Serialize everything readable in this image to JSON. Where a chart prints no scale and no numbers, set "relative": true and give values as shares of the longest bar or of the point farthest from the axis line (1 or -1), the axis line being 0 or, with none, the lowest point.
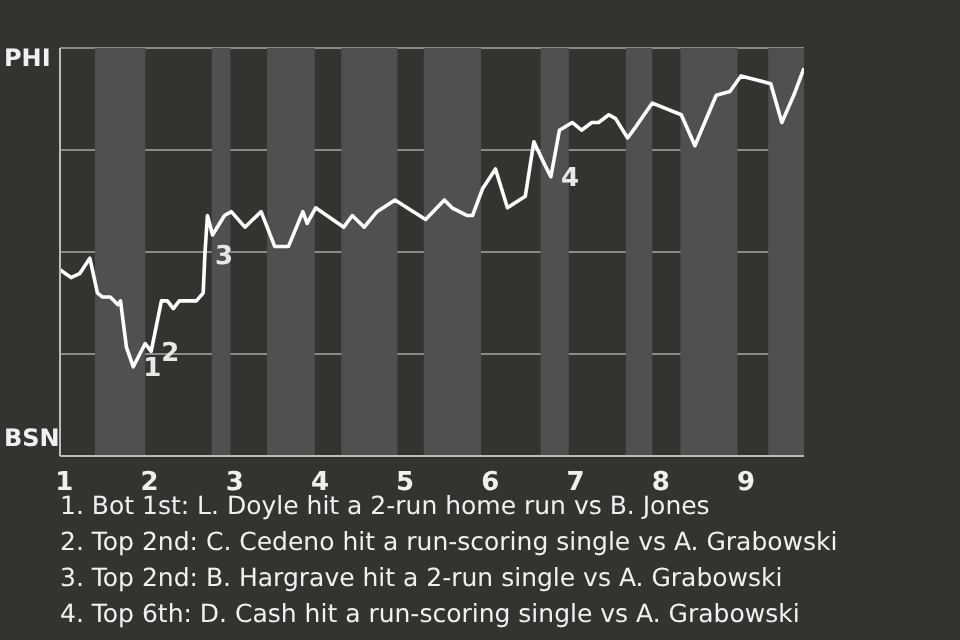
{
  "chart_data": {
    "type": "line",
    "relative": true,
    "x": [
      0.95,
      1.08,
      1.18,
      1.3,
      1.39,
      1.45,
      1.54,
      1.63,
      1.66,
      1.73,
      1.81,
      1.95,
      2.02,
      2.14,
      2.21,
      2.28,
      2.35,
      2.55,
      2.63,
      2.65,
      2.68,
      2.74,
      2.88,
      2.96,
      3.12,
      3.31,
      3.47,
      3.63,
      3.8,
      3.85,
      3.95,
      4.28,
      4.38,
      4.52,
      4.67,
      4.88,
      5.24,
      5.46,
      5.55,
      5.73,
      5.79,
      5.91,
      6.06,
      6.2,
      6.41,
      6.51,
      6.64,
      6.71,
      6.81,
      6.96,
      7.07,
      7.19,
      7.27,
      7.39,
      7.47,
      7.61,
      7.71,
      7.9,
      8.24,
      8.4,
      8.65,
      8.81,
      8.94,
      9.29,
      9.42,
      9.56,
      9.68
    ],
    "series": [
      {
        "color": "#ffffff",
        "values": [
          0.48,
          0.46,
          0.47,
          0.51,
          0.42,
          0.41,
          0.41,
          0.39,
          0.4,
          0.28,
          0.23,
          0.29,
          0.27,
          0.4,
          0.4,
          0.38,
          0.4,
          0.4,
          0.42,
          0.52,
          0.62,
          0.57,
          0.62,
          0.63,
          0.59,
          0.63,
          0.54,
          0.54,
          0.63,
          0.6,
          0.64,
          0.59,
          0.62,
          0.59,
          0.63,
          0.66,
          0.61,
          0.66,
          0.64,
          0.62,
          0.62,
          0.69,
          0.74,
          0.64,
          0.67,
          0.81,
          0.75,
          0.72,
          0.84,
          0.86,
          0.84,
          0.86,
          0.86,
          0.88,
          0.87,
          0.82,
          0.85,
          0.91,
          0.88,
          0.8,
          0.93,
          0.94,
          0.98,
          0.96,
          0.86,
          0.93,
          1
        ]
      }
    ],
    "xlim": [
      0.95,
      9.68
    ],
    "xticks": [
      1,
      2,
      3,
      4,
      5,
      6,
      7,
      8,
      9
    ],
    "grid": "y",
    "bands": [
      {
        "axis": "x",
        "from": 1.36,
        "to": 1.95,
        "color": "#505050"
      },
      {
        "axis": "x",
        "from": 2.73,
        "to": 2.95,
        "color": "#505050"
      },
      {
        "axis": "x",
        "from": 3.38,
        "to": 3.94,
        "color": "#505050"
      },
      {
        "axis": "x",
        "from": 4.25,
        "to": 4.91,
        "color": "#505050"
      },
      {
        "axis": "x",
        "from": 5.22,
        "to": 5.89,
        "color": "#505050"
      },
      {
        "axis": "x",
        "from": 6.59,
        "to": 6.92,
        "color": "#505050"
      },
      {
        "axis": "x",
        "from": 7.59,
        "to": 7.9,
        "color": "#505050"
      },
      {
        "axis": "x",
        "from": 8.23,
        "to": 8.9,
        "color": "#505050"
      },
      {
        "axis": "x",
        "from": 9.26,
        "to": 9.68,
        "color": "#505050"
      }
    ],
    "annotations": [
      "PHI",
      "BSN",
      {
        "text": "1",
        "x": 1.81,
        "y": 0.23
      },
      {
        "text": "2",
        "x": 2.02,
        "y": 0.27
      },
      {
        "text": "3",
        "x": 2.65,
        "y": 0.52
      },
      {
        "text": "4",
        "x": 6.71,
        "y": 0.72
      },
      "1. Bot 1st: L. Doyle hit a 2-run home run vs B. Jones",
      "2. Top 2nd: C. Cedeno hit a run-scoring single vs A. Grabowski",
      "3. Top 2nd: B. Hargrave hit a 2-run single vs A. Grabowski",
      "4. Top 6th: D. Cash hit a run-scoring single vs A. Grabowski"
    ],
    "marker": "none",
    "line_style": "solid"
  }
}
